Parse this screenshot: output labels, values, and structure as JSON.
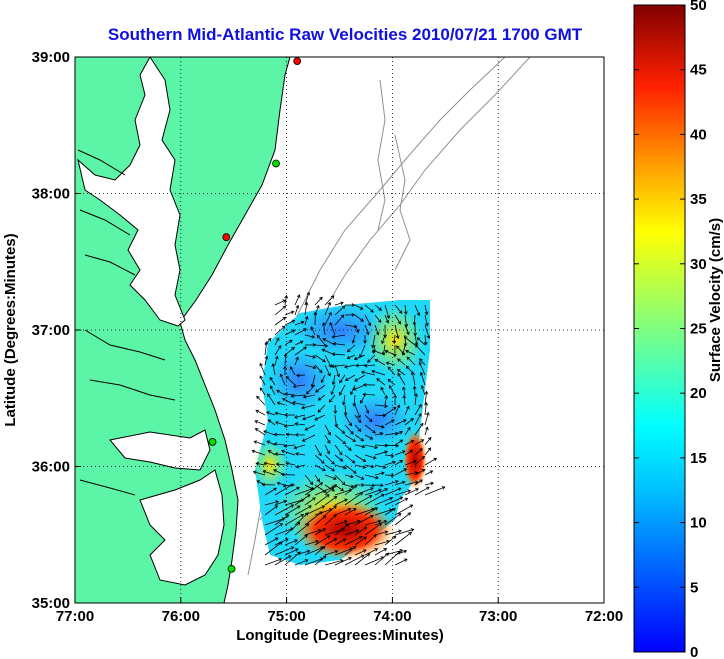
{
  "title": "Southern Mid-Atlantic Raw Velocities 2010/07/21 1700 GMT",
  "x_axis": {
    "label": "Longitude (Degrees:Minutes)",
    "ticks": [
      "77:00",
      "76:00",
      "75:00",
      "74:00",
      "73:00",
      "72:00"
    ],
    "range": [
      -77,
      -72
    ]
  },
  "y_axis": {
    "label": "Latitude (Degrees:Minutes)",
    "ticks": [
      "39:00",
      "38:00",
      "37:00",
      "36:00",
      "35:00"
    ],
    "range": [
      35,
      39
    ]
  },
  "colorbar": {
    "label": "Surface Velocity (cm/s)",
    "ticks": [
      "50",
      "45",
      "40",
      "35",
      "30",
      "25",
      "20",
      "15",
      "10",
      "5",
      "0"
    ],
    "range": [
      0,
      50
    ],
    "colormap": "jet"
  },
  "colors": {
    "land": "#5cf5a8",
    "coastline": "#000000",
    "bathymetry": "#909090",
    "grid": "#000000",
    "arrows": "#000000",
    "title": "#1010e0"
  },
  "grid": "dotted",
  "stations": [
    {
      "lon": -74.9,
      "lat": 38.97,
      "color": "#ff0000"
    },
    {
      "lon": -75.1,
      "lat": 38.22,
      "color": "#00e000"
    },
    {
      "lon": -75.57,
      "lat": 37.68,
      "color": "#ff0000"
    },
    {
      "lon": -75.7,
      "lat": 36.18,
      "color": "#00e000"
    },
    {
      "lon": -75.52,
      "lat": 35.25,
      "color": "#00e000"
    }
  ]
}
